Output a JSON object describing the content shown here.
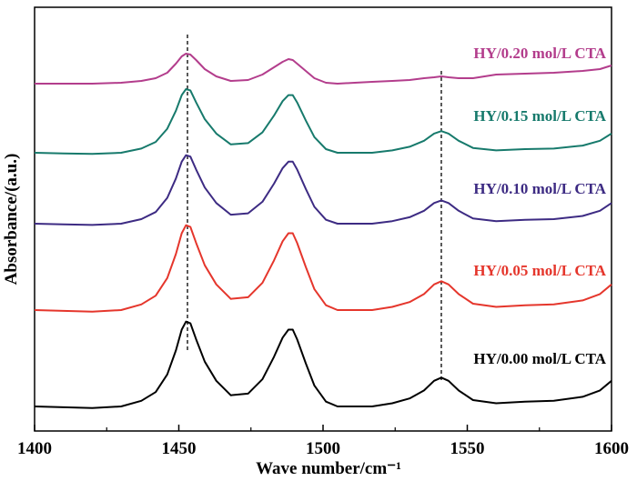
{
  "chart_data": {
    "type": "line",
    "xlabel": "Wave number/cm⁻¹",
    "ylabel": "Absorbance/(a.u.)",
    "xlim": [
      1400,
      1600
    ],
    "xticks": [
      "1400",
      "1450",
      "1500",
      "1550",
      "1600"
    ],
    "yticks_shown": false,
    "grid": false,
    "reference_lines": [
      1453,
      1541
    ],
    "series": [
      {
        "name": "HY/0.00 mol/L CTA",
        "color": "#000000",
        "x": [
          1400,
          1410,
          1420,
          1430,
          1437,
          1442,
          1446,
          1449,
          1451,
          1452.5,
          1454,
          1456,
          1459,
          1463,
          1468,
          1474,
          1479,
          1483,
          1486,
          1488,
          1489.5,
          1491,
          1494,
          1497,
          1501,
          1505,
          1511,
          1517,
          1524,
          1530,
          1535,
          1538.5,
          1541,
          1543.5,
          1547,
          1552,
          1560,
          1570,
          1580,
          1590,
          1596,
          1600
        ],
        "y": [
          0.0,
          -0.005,
          -0.01,
          0.0,
          0.035,
          0.09,
          0.2,
          0.35,
          0.48,
          0.53,
          0.52,
          0.42,
          0.28,
          0.16,
          0.07,
          0.08,
          0.17,
          0.31,
          0.43,
          0.48,
          0.48,
          0.42,
          0.27,
          0.13,
          0.03,
          0.0,
          0.0,
          0.0,
          0.02,
          0.05,
          0.1,
          0.16,
          0.18,
          0.16,
          0.1,
          0.04,
          0.02,
          0.03,
          0.035,
          0.06,
          0.1,
          0.16
        ]
      },
      {
        "name": "HY/0.05 mol/L CTA",
        "color": "#e5362c",
        "x": [
          1400,
          1410,
          1420,
          1430,
          1437,
          1442,
          1446,
          1449,
          1451,
          1452.5,
          1454,
          1456,
          1459,
          1463,
          1468,
          1474,
          1479,
          1483,
          1486,
          1488,
          1489.5,
          1491,
          1494,
          1497,
          1501,
          1505,
          1511,
          1517,
          1524,
          1530,
          1535,
          1538.5,
          1541,
          1543.5,
          1547,
          1552,
          1560,
          1570,
          1580,
          1590,
          1596,
          1600
        ],
        "y": [
          0.0,
          -0.005,
          -0.01,
          0.0,
          0.035,
          0.09,
          0.2,
          0.35,
          0.48,
          0.53,
          0.52,
          0.42,
          0.28,
          0.16,
          0.07,
          0.08,
          0.17,
          0.31,
          0.43,
          0.48,
          0.48,
          0.42,
          0.27,
          0.13,
          0.03,
          0.0,
          0.0,
          0.0,
          0.02,
          0.05,
          0.1,
          0.16,
          0.18,
          0.16,
          0.1,
          0.04,
          0.02,
          0.03,
          0.035,
          0.06,
          0.1,
          0.16
        ]
      },
      {
        "name": "HY/0.10 mol/L CTA",
        "color": "#3d2b83",
        "x": [
          1400,
          1410,
          1420,
          1430,
          1437,
          1442,
          1446,
          1449,
          1451,
          1452.5,
          1454,
          1456,
          1459,
          1463,
          1468,
          1474,
          1479,
          1483,
          1486,
          1488,
          1489.5,
          1491,
          1494,
          1497,
          1501,
          1505,
          1511,
          1517,
          1524,
          1530,
          1535,
          1538.5,
          1541,
          1543.5,
          1547,
          1552,
          1560,
          1570,
          1580,
          1590,
          1596,
          1600
        ],
        "y": [
          0.0,
          -0.005,
          -0.01,
          0.0,
          0.035,
          0.09,
          0.2,
          0.35,
          0.48,
          0.53,
          0.52,
          0.42,
          0.28,
          0.16,
          0.07,
          0.08,
          0.17,
          0.31,
          0.43,
          0.48,
          0.48,
          0.42,
          0.27,
          0.13,
          0.03,
          0.0,
          0.0,
          0.0,
          0.02,
          0.05,
          0.1,
          0.16,
          0.18,
          0.16,
          0.1,
          0.04,
          0.02,
          0.03,
          0.035,
          0.06,
          0.1,
          0.16
        ]
      },
      {
        "name": "HY/0.15 mol/L CTA",
        "color": "#177a6c",
        "x": [
          1400,
          1410,
          1420,
          1430,
          1437,
          1442,
          1446,
          1449,
          1451,
          1452.5,
          1454,
          1456,
          1459,
          1463,
          1468,
          1474,
          1479,
          1483,
          1486,
          1488,
          1489.5,
          1491,
          1494,
          1497,
          1501,
          1505,
          1511,
          1517,
          1524,
          1530,
          1535,
          1538.5,
          1541,
          1543.5,
          1547,
          1552,
          1560,
          1570,
          1580,
          1590,
          1596,
          1600
        ],
        "y": [
          0.0,
          -0.005,
          -0.01,
          0.0,
          0.035,
          0.09,
          0.2,
          0.35,
          0.48,
          0.53,
          0.52,
          0.42,
          0.28,
          0.16,
          0.07,
          0.08,
          0.17,
          0.31,
          0.43,
          0.48,
          0.48,
          0.42,
          0.27,
          0.13,
          0.03,
          0.0,
          0.0,
          0.0,
          0.02,
          0.05,
          0.1,
          0.16,
          0.18,
          0.16,
          0.1,
          0.04,
          0.02,
          0.03,
          0.035,
          0.06,
          0.1,
          0.16
        ]
      },
      {
        "name": "HY/0.20 mol/L CTA",
        "color": "#b33d8c",
        "x": [
          1400,
          1410,
          1420,
          1430,
          1437,
          1442,
          1446,
          1449,
          1451,
          1452.5,
          1454,
          1456,
          1459,
          1463,
          1468,
          1474,
          1479,
          1483,
          1486,
          1488,
          1489.5,
          1491,
          1494,
          1497,
          1501,
          1505,
          1511,
          1517,
          1524,
          1530,
          1535,
          1538.5,
          1541,
          1543.5,
          1547,
          1552,
          1560,
          1570,
          1580,
          1590,
          1596,
          1600
        ],
        "y": [
          0.0,
          0.0,
          0.0,
          0.005,
          0.015,
          0.03,
          0.06,
          0.11,
          0.15,
          0.165,
          0.16,
          0.13,
          0.08,
          0.04,
          0.015,
          0.02,
          0.05,
          0.09,
          0.12,
          0.135,
          0.13,
          0.11,
          0.07,
          0.03,
          0.005,
          0.0,
          0.005,
          0.01,
          0.015,
          0.02,
          0.03,
          0.035,
          0.04,
          0.035,
          0.03,
          0.03,
          0.05,
          0.055,
          0.06,
          0.07,
          0.08,
          0.1
        ]
      }
    ]
  }
}
